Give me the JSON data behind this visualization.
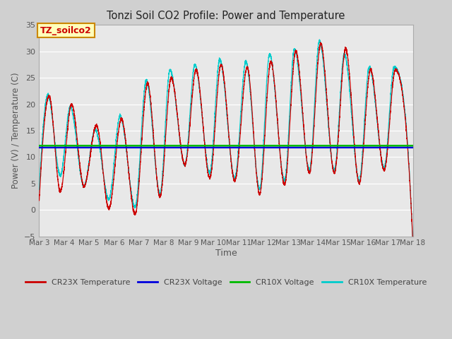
{
  "title": "Tonzi Soil CO2 Profile: Power and Temperature",
  "xlabel": "Time",
  "ylabel": "Power (V) / Temperature (C)",
  "ylim": [
    -5,
    35
  ],
  "yticks": [
    -5,
    0,
    5,
    10,
    15,
    20,
    25,
    30,
    35
  ],
  "fig_bg_color": "#d0d0d0",
  "plot_bg_color": "#e8e8e8",
  "cr23x_voltage": 11.8,
  "cr10x_voltage": 12.15,
  "cr23x_voltage_color": "#0000dd",
  "cr10x_voltage_color": "#00bb00",
  "cr23x_temp_color": "#cc0000",
  "cr10x_temp_color": "#00cccc",
  "annotation_text": "TZ_soilco2",
  "annotation_bg": "#ffffbb",
  "annotation_border": "#cc8800",
  "x_start_day": 3,
  "x_end_day": 18,
  "x_tick_days": [
    3,
    4,
    5,
    6,
    7,
    8,
    9,
    10,
    11,
    12,
    13,
    14,
    15,
    16,
    17,
    18
  ],
  "x_tick_labels": [
    "Mar 3",
    "Mar 4",
    "Mar 5",
    "Mar 6",
    "Mar 7",
    "Mar 8",
    "Mar 9",
    "Mar 10",
    "Mar 11",
    "Mar 12",
    "Mar 13",
    "Mar 14",
    "Mar 15",
    "Mar 16",
    "Mar 17",
    "Mar 18"
  ],
  "peaks_day": [
    3.4,
    4.3,
    5.3,
    6.3,
    7.35,
    8.3,
    9.3,
    10.3,
    11.35,
    12.3,
    13.3,
    14.3,
    15.3,
    16.3,
    17.3
  ],
  "peaks_val": [
    21.5,
    20.0,
    16.0,
    17.2,
    24.0,
    25.0,
    26.5,
    27.5,
    27.0,
    28.0,
    30.0,
    31.5,
    30.5,
    26.5,
    26.5
  ],
  "troughs_day": [
    3.0,
    3.85,
    4.8,
    5.8,
    6.85,
    7.85,
    8.85,
    9.85,
    10.85,
    11.85,
    12.85,
    13.85,
    14.85,
    15.85,
    16.85,
    17.85
  ],
  "troughs_val": [
    1.5,
    3.5,
    4.5,
    0.2,
    -0.8,
    2.5,
    8.5,
    6.0,
    5.5,
    3.0,
    4.8,
    7.0,
    7.0,
    5.0,
    7.5,
    7.5
  ]
}
